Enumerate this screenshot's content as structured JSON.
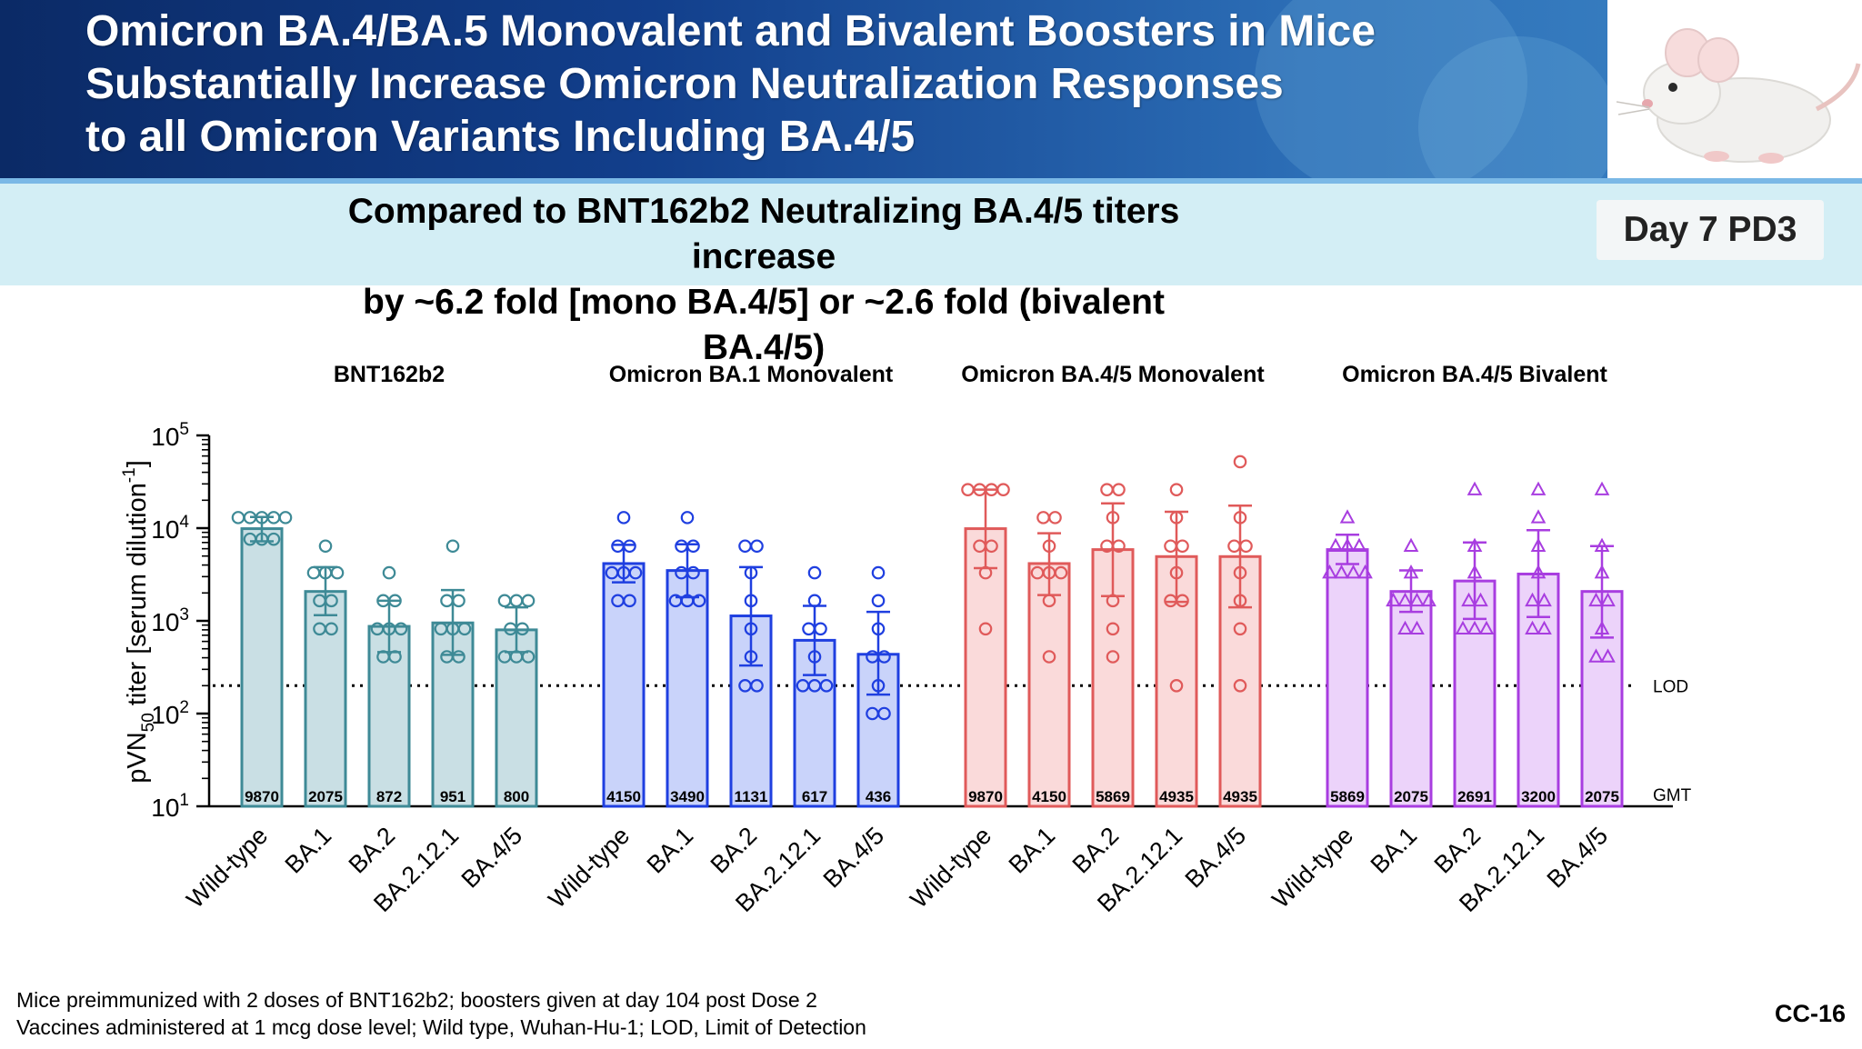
{
  "title_lines": [
    "Omicron BA.4/BA.5 Monovalent and Bivalent Boosters in Mice",
    "Substantially Increase Omicron Neutralization Responses",
    "to all Omicron Variants Including BA.4/5"
  ],
  "subtitle_lines": [
    "Compared to BNT162b2 Neutralizing BA.4/5 titers increase",
    "by ~6.2 fold [mono BA.4/5] or ~2.6 fold (bivalent BA.4/5)"
  ],
  "badge": "Day 7 PD3",
  "footnotes": [
    "Mice preimmunized with 2 doses of BNT162b2; boosters given at day 104 post Dose 2",
    "Vaccines administered at 1 mcg dose level; Wild type, Wuhan-Hu-1; LOD, Limit of Detection"
  ],
  "slide_number": "CC-16",
  "chart_data": {
    "type": "bar",
    "scale": "log10",
    "ylim": [
      10,
      100000
    ],
    "y_ticks": [
      {
        "value": 10,
        "base": "10",
        "exp": "1"
      },
      {
        "value": 100,
        "base": "10",
        "exp": "2"
      },
      {
        "value": 1000,
        "base": "10",
        "exp": "3"
      },
      {
        "value": 10000,
        "base": "10",
        "exp": "4"
      },
      {
        "value": 100000,
        "base": "10",
        "exp": "5"
      }
    ],
    "ylabel": {
      "pre": "pVN",
      "sub": "50",
      "mid": " titer [serum dilution",
      "sup": "-1",
      "post": "]"
    },
    "lod": {
      "value": 200,
      "label": "LOD"
    },
    "gmt_label": "GMT",
    "grid": false,
    "groups": [
      {
        "name": "BNT162b2",
        "color": "#3e8a96",
        "fill": "#c9dfe4",
        "marker": "circle",
        "categories": [
          "Wild-type",
          "BA.1",
          "BA.2",
          "BA.2.12.1",
          "BA.4/5"
        ],
        "gmt": [
          9870,
          2075,
          872,
          951,
          800
        ],
        "gmt_labels": [
          "9870",
          "2075",
          "872",
          "951",
          "800"
        ],
        "error": [
          [
            7200,
            13200
          ],
          [
            1150,
            3800
          ],
          [
            460,
            1650
          ],
          [
            430,
            2150
          ],
          [
            460,
            1400
          ]
        ],
        "points": [
          [
            13000,
            13000,
            13000,
            13000,
            13000,
            7600,
            7600,
            7600
          ],
          [
            6400,
            3300,
            3300,
            3300,
            1650,
            1650,
            820,
            820
          ],
          [
            3300,
            1650,
            1650,
            820,
            820,
            820,
            410,
            410
          ],
          [
            6400,
            1650,
            1650,
            820,
            820,
            820,
            410,
            410
          ],
          [
            1650,
            1650,
            1650,
            820,
            820,
            410,
            410,
            410
          ]
        ]
      },
      {
        "name": "Omicron BA.1 Monovalent",
        "color": "#1f3fe0",
        "fill": "#c9d3fa",
        "marker": "circle",
        "categories": [
          "Wild-type",
          "BA.1",
          "BA.2",
          "BA.2.12.1",
          "BA.4/5"
        ],
        "gmt": [
          4150,
          3490,
          1131,
          617,
          436
        ],
        "gmt_labels": [
          "4150",
          "3490",
          "1131",
          "617",
          "436"
        ],
        "error": [
          [
            2600,
            6600
          ],
          [
            1800,
            6700
          ],
          [
            330,
            3800
          ],
          [
            260,
            1450
          ],
          [
            160,
            1250
          ]
        ],
        "points": [
          [
            13000,
            6400,
            6400,
            3300,
            3300,
            3300,
            1650,
            1650
          ],
          [
            13000,
            6400,
            6400,
            3300,
            3300,
            1650,
            1650,
            1650
          ],
          [
            6400,
            6400,
            3300,
            1650,
            820,
            410,
            200,
            200
          ],
          [
            3300,
            1650,
            820,
            820,
            410,
            200,
            200,
            200
          ],
          [
            3300,
            1650,
            820,
            410,
            410,
            200,
            100,
            100
          ]
        ]
      },
      {
        "name": "Omicron BA.4/5 Monovalent",
        "color": "#e05a5a",
        "fill": "#fadada",
        "marker": "circle",
        "categories": [
          "Wild-type",
          "BA.1",
          "BA.2",
          "BA.2.12.1",
          "BA.4/5"
        ],
        "gmt": [
          9870,
          4150,
          5869,
          4935,
          4935
        ],
        "gmt_labels": [
          "9870",
          "4150",
          "5869",
          "4935",
          "4935"
        ],
        "error": [
          [
            3700,
            26000
          ],
          [
            1900,
            8800
          ],
          [
            1850,
            18500
          ],
          [
            1600,
            15000
          ],
          [
            1400,
            17500
          ]
        ],
        "points": [
          [
            26000,
            26000,
            26000,
            26000,
            6400,
            6400,
            3300,
            820
          ],
          [
            13000,
            13000,
            6400,
            3300,
            3300,
            3300,
            1650,
            410
          ],
          [
            26000,
            26000,
            13000,
            6400,
            6400,
            1650,
            820,
            410
          ],
          [
            26000,
            13000,
            6400,
            6400,
            3300,
            1650,
            1650,
            200
          ],
          [
            52000,
            13000,
            6400,
            6400,
            3300,
            1650,
            820,
            200
          ]
        ]
      },
      {
        "name": "Omicron BA.4/5 Bivalent",
        "color": "#a83de0",
        "fill": "#ecd3fa",
        "marker": "triangle",
        "categories": [
          "Wild-type",
          "BA.1",
          "BA.2",
          "BA.2.12.1",
          "BA.4/5"
        ],
        "gmt": [
          5869,
          2075,
          2691,
          3200,
          2075
        ],
        "gmt_labels": [
          "5869",
          "2075",
          "2691",
          "3200",
          "2075"
        ],
        "error": [
          [
            4100,
            8500
          ],
          [
            1250,
            3500
          ],
          [
            1050,
            7000
          ],
          [
            1100,
            9500
          ],
          [
            660,
            6400
          ]
        ],
        "points": [
          [
            13000,
            6400,
            6400,
            6400,
            3300,
            3300,
            3300,
            3300
          ],
          [
            6400,
            3300,
            1650,
            1650,
            1650,
            1650,
            820,
            820
          ],
          [
            26000,
            6400,
            3300,
            1650,
            1650,
            820,
            820,
            820
          ],
          [
            26000,
            13000,
            6400,
            3300,
            1650,
            1650,
            820,
            820
          ],
          [
            26000,
            6400,
            3300,
            1650,
            1650,
            820,
            410,
            410
          ]
        ]
      }
    ]
  }
}
